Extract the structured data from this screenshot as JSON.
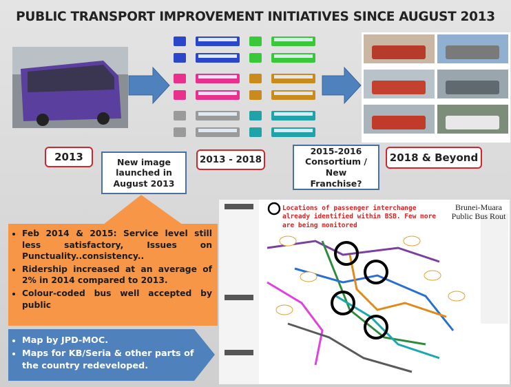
{
  "title": "PUBLIC TRANSPORT IMPROVEMENT INITIATIVES SINCE AUGUST 2013",
  "timeline": [
    {
      "label": "2013"
    },
    {
      "label": "New image launched in August 2013"
    },
    {
      "label": "2013 - 2018"
    },
    {
      "label": "2015-2016 Consortium / New Franchise?"
    },
    {
      "label": "2018 & Beyond"
    }
  ],
  "callout": {
    "bullets": [
      "Feb 2014 & 2015: Service level still less satisfactory, Issues on Punctuality..consistency..",
      "Ridership increased at an average of 2% in 2014 compared to 2013.",
      "Colour-coded bus well accepted by public"
    ]
  },
  "map_note": {
    "bullets": [
      "Map by JPD-MOC.",
      "Maps for KB/Seria & other parts of the country redeveloped."
    ]
  },
  "map": {
    "legend_note": "Locations of passenger interchange already identified within BSB. Few more are being monitored",
    "title": "Brunei-Muara Public Bus Rout"
  }
}
